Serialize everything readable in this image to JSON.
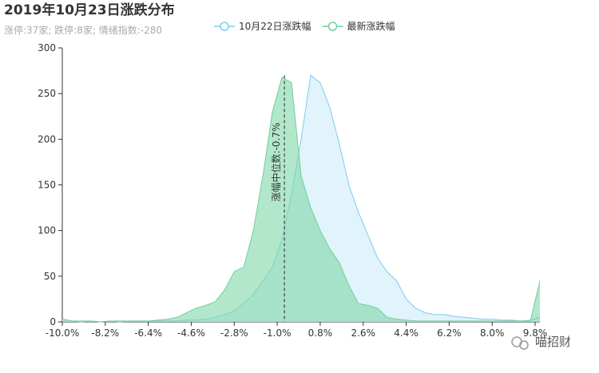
{
  "chart_data": {
    "type": "area",
    "title": "2019年10月23日涨跌分布",
    "subtitle": "涨停:37家; 跌停:8家; 情绪指数:-280",
    "watermark": "喵招财",
    "x": [
      -10,
      -9.6,
      -9.2,
      -8.8,
      -8.4,
      -8,
      -7.6,
      -7.2,
      -6.8,
      -6.4,
      -6,
      -5.6,
      -5.2,
      -4.8,
      -4.4,
      -4,
      -3.6,
      -3.2,
      -2.8,
      -2.4,
      -2,
      -1.6,
      -1.2,
      -0.8,
      -0.4,
      0,
      0.4,
      0.8,
      1.2,
      1.6,
      2,
      2.4,
      2.8,
      3.2,
      3.6,
      4,
      4.4,
      4.8,
      5.2,
      5.6,
      6,
      6.4,
      6.8,
      7.2,
      7.6,
      8,
      8.4,
      8.8,
      9.2,
      9.6,
      10
    ],
    "series": [
      {
        "name": "10月22日涨跌幅",
        "color": "#7ecbee",
        "fill": "#dcf1fa",
        "values": [
          3,
          1,
          0,
          1,
          0,
          1,
          0,
          1,
          1,
          1,
          1,
          1,
          1,
          2,
          2,
          3,
          5,
          8,
          12,
          20,
          30,
          45,
          60,
          90,
          140,
          200,
          270,
          262,
          235,
          195,
          150,
          120,
          95,
          70,
          55,
          45,
          25,
          15,
          10,
          8,
          8,
          6,
          5,
          4,
          3,
          3,
          2,
          2,
          1,
          2,
          5
        ]
      },
      {
        "name": "最新涨跌幅",
        "color": "#6fd09b",
        "fill": "#7fd7a9",
        "values": [
          3,
          1,
          1,
          1,
          0,
          1,
          1,
          1,
          1,
          1,
          2,
          3,
          5,
          10,
          15,
          18,
          22,
          35,
          55,
          60,
          100,
          160,
          230,
          268,
          262,
          160,
          125,
          100,
          80,
          65,
          40,
          20,
          18,
          15,
          5,
          3,
          2,
          1,
          1,
          1,
          1,
          1,
          1,
          1,
          1,
          1,
          1,
          1,
          1,
          1,
          45
        ]
      }
    ],
    "annotation": {
      "value": -0.7,
      "label": "涨幅中位数:-0.7%"
    },
    "xlim": [
      -10,
      10
    ],
    "xticks": [
      {
        "value": -10,
        "label": "-10.0%"
      },
      {
        "value": -8.2,
        "label": "-8.2%"
      },
      {
        "value": -6.4,
        "label": "-6.4%"
      },
      {
        "value": -4.6,
        "label": "-4.6%"
      },
      {
        "value": -2.8,
        "label": "-2.8%"
      },
      {
        "value": -1,
        "label": "-1.0%"
      },
      {
        "value": 0.8,
        "label": "0.8%"
      },
      {
        "value": 2.6,
        "label": "2.6%"
      },
      {
        "value": 4.4,
        "label": "4.4%"
      },
      {
        "value": 6.2,
        "label": "6.2%"
      },
      {
        "value": 8,
        "label": "8.0%"
      },
      {
        "value": 9.8,
        "label": "9.8%"
      }
    ],
    "ylim": [
      0,
      300
    ],
    "yticks": [
      0,
      50,
      100,
      150,
      200,
      250,
      300
    ],
    "grid": false
  }
}
